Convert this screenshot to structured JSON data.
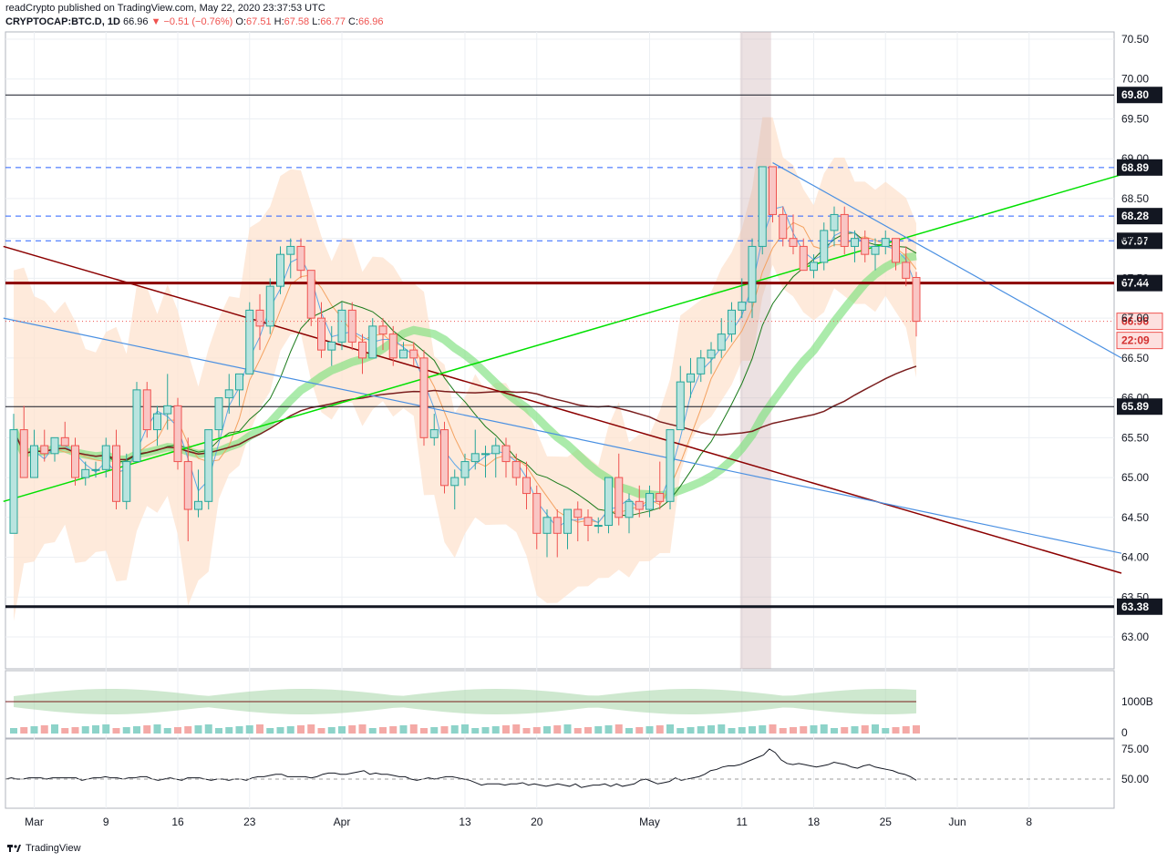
{
  "header": {
    "publisher": "readCrypto published on TradingView.com, May 22, 2020 23:37:53 UTC",
    "symbol": "CRYPTOCAP:BTC.D, 1D",
    "last": "66.96",
    "change": "▼ −0.51 (−0.76%)",
    "o_label": "O:",
    "o": "67.51",
    "h_label": "H:",
    "h": "67.58",
    "l_label": "L:",
    "l": "66.77",
    "c_label": "C:",
    "c": "66.96"
  },
  "footer": {
    "brand": "TradingView"
  },
  "colors": {
    "up": "#26a69a",
    "down": "#ef5350",
    "grid": "#eceff3",
    "dashed": "#2962ff",
    "darkred": "#8b0000",
    "green": "#00e000",
    "blue": "#4a90e2"
  },
  "chart_data": {
    "type": "line",
    "title": "",
    "ylim": [
      62.6,
      70.6
    ],
    "x_ticks": [
      {
        "day": 2,
        "label": "Mar"
      },
      {
        "day": 9,
        "label": "9"
      },
      {
        "day": 16,
        "label": "16"
      },
      {
        "day": 23,
        "label": "23"
      },
      {
        "day": 32,
        "label": "Apr"
      },
      {
        "day": 44,
        "label": "13"
      },
      {
        "day": 51,
        "label": "20"
      },
      {
        "day": 62,
        "label": "May"
      },
      {
        "day": 71,
        "label": "11"
      },
      {
        "day": 78,
        "label": "18"
      },
      {
        "day": 85,
        "label": "25"
      },
      {
        "day": 92,
        "label": "Jun"
      },
      {
        "day": 99,
        "label": "8"
      }
    ],
    "y_ticks": [
      "70.50",
      "70.00",
      "69.50",
      "69.00",
      "68.50",
      "68.00",
      "67.50",
      "67.00",
      "66.50",
      "66.00",
      "65.50",
      "65.00",
      "64.50",
      "64.00",
      "63.50",
      "63.00"
    ],
    "y_tick_values": [
      70.5,
      70.0,
      69.5,
      69.0,
      68.5,
      68.0,
      67.5,
      67.0,
      66.5,
      66.0,
      65.5,
      65.0,
      64.5,
      64.0,
      63.5,
      63.0
    ],
    "candles": [
      {
        "o": 64.3,
        "h": 65.8,
        "l": 64.3,
        "c": 65.6
      },
      {
        "o": 65.6,
        "h": 65.9,
        "l": 65.0,
        "c": 65.0
      },
      {
        "o": 65.0,
        "h": 65.6,
        "l": 65.0,
        "c": 65.4
      },
      {
        "o": 65.4,
        "h": 65.6,
        "l": 65.2,
        "c": 65.3
      },
      {
        "o": 65.3,
        "h": 65.5,
        "l": 65.2,
        "c": 65.5
      },
      {
        "o": 65.5,
        "h": 65.7,
        "l": 65.4,
        "c": 65.4
      },
      {
        "o": 65.4,
        "h": 65.5,
        "l": 64.9,
        "c": 65.0
      },
      {
        "o": 65.0,
        "h": 65.2,
        "l": 64.9,
        "c": 65.1
      },
      {
        "o": 65.1,
        "h": 65.2,
        "l": 65.0,
        "c": 65.1
      },
      {
        "o": 65.1,
        "h": 65.5,
        "l": 65.0,
        "c": 65.4
      },
      {
        "o": 65.4,
        "h": 65.6,
        "l": 64.6,
        "c": 64.7
      },
      {
        "o": 64.7,
        "h": 65.3,
        "l": 64.6,
        "c": 65.2
      },
      {
        "o": 65.2,
        "h": 66.2,
        "l": 65.2,
        "c": 66.1
      },
      {
        "o": 66.1,
        "h": 66.2,
        "l": 65.5,
        "c": 65.6
      },
      {
        "o": 65.6,
        "h": 65.9,
        "l": 65.4,
        "c": 65.8
      },
      {
        "o": 65.8,
        "h": 66.3,
        "l": 65.6,
        "c": 65.9
      },
      {
        "o": 65.9,
        "h": 66.0,
        "l": 65.1,
        "c": 65.2
      },
      {
        "o": 65.2,
        "h": 65.5,
        "l": 64.2,
        "c": 64.6
      },
      {
        "o": 64.6,
        "h": 65.1,
        "l": 64.5,
        "c": 64.7
      },
      {
        "o": 64.7,
        "h": 65.6,
        "l": 64.6,
        "c": 65.6
      },
      {
        "o": 65.6,
        "h": 66.0,
        "l": 65.5,
        "c": 66.0
      },
      {
        "o": 66.0,
        "h": 66.3,
        "l": 65.8,
        "c": 66.1
      },
      {
        "o": 66.1,
        "h": 66.3,
        "l": 65.9,
        "c": 66.3
      },
      {
        "o": 66.3,
        "h": 67.2,
        "l": 66.3,
        "c": 67.1
      },
      {
        "o": 67.1,
        "h": 67.3,
        "l": 66.6,
        "c": 66.9
      },
      {
        "o": 66.9,
        "h": 67.5,
        "l": 66.8,
        "c": 67.4
      },
      {
        "o": 67.4,
        "h": 67.9,
        "l": 67.3,
        "c": 67.8
      },
      {
        "o": 67.8,
        "h": 68.0,
        "l": 67.5,
        "c": 67.9
      },
      {
        "o": 67.9,
        "h": 68.0,
        "l": 67.5,
        "c": 67.6
      },
      {
        "o": 67.6,
        "h": 67.6,
        "l": 66.9,
        "c": 67.0
      },
      {
        "o": 67.0,
        "h": 67.2,
        "l": 66.5,
        "c": 66.6
      },
      {
        "o": 66.6,
        "h": 66.9,
        "l": 66.4,
        "c": 66.7
      },
      {
        "o": 66.7,
        "h": 67.2,
        "l": 66.6,
        "c": 67.1
      },
      {
        "o": 67.1,
        "h": 67.2,
        "l": 66.6,
        "c": 66.7
      },
      {
        "o": 66.7,
        "h": 66.8,
        "l": 66.3,
        "c": 66.5
      },
      {
        "o": 66.5,
        "h": 67.0,
        "l": 66.5,
        "c": 66.9
      },
      {
        "o": 66.9,
        "h": 67.0,
        "l": 66.6,
        "c": 66.8
      },
      {
        "o": 66.8,
        "h": 66.9,
        "l": 66.4,
        "c": 66.5
      },
      {
        "o": 66.5,
        "h": 66.7,
        "l": 66.5,
        "c": 66.6
      },
      {
        "o": 66.6,
        "h": 66.7,
        "l": 66.4,
        "c": 66.5
      },
      {
        "o": 66.5,
        "h": 66.6,
        "l": 65.4,
        "c": 65.5
      },
      {
        "o": 65.5,
        "h": 65.8,
        "l": 65.4,
        "c": 65.6
      },
      {
        "o": 65.6,
        "h": 65.7,
        "l": 64.8,
        "c": 64.9
      },
      {
        "o": 64.9,
        "h": 65.1,
        "l": 64.6,
        "c": 65.0
      },
      {
        "o": 65.0,
        "h": 65.3,
        "l": 64.9,
        "c": 65.2
      },
      {
        "o": 65.2,
        "h": 65.6,
        "l": 65.1,
        "c": 65.3
      },
      {
        "o": 65.3,
        "h": 65.4,
        "l": 65.0,
        "c": 65.3
      },
      {
        "o": 65.3,
        "h": 65.5,
        "l": 65.0,
        "c": 65.4
      },
      {
        "o": 65.4,
        "h": 65.5,
        "l": 65.0,
        "c": 65.2
      },
      {
        "o": 65.2,
        "h": 65.3,
        "l": 64.9,
        "c": 65.0
      },
      {
        "o": 65.0,
        "h": 65.2,
        "l": 64.6,
        "c": 64.8
      },
      {
        "o": 64.8,
        "h": 64.9,
        "l": 64.1,
        "c": 64.3
      },
      {
        "o": 64.3,
        "h": 64.6,
        "l": 64.0,
        "c": 64.5
      },
      {
        "o": 64.5,
        "h": 64.6,
        "l": 64.0,
        "c": 64.3
      },
      {
        "o": 64.3,
        "h": 64.6,
        "l": 64.1,
        "c": 64.6
      },
      {
        "o": 64.6,
        "h": 64.7,
        "l": 64.2,
        "c": 64.5
      },
      {
        "o": 64.5,
        "h": 64.6,
        "l": 64.2,
        "c": 64.4
      },
      {
        "o": 64.4,
        "h": 64.5,
        "l": 64.3,
        "c": 64.4
      },
      {
        "o": 64.4,
        "h": 65.0,
        "l": 64.3,
        "c": 65.0
      },
      {
        "o": 65.0,
        "h": 65.3,
        "l": 64.4,
        "c": 64.5
      },
      {
        "o": 64.5,
        "h": 64.8,
        "l": 64.3,
        "c": 64.7
      },
      {
        "o": 64.7,
        "h": 64.9,
        "l": 64.5,
        "c": 64.6
      },
      {
        "o": 64.6,
        "h": 64.9,
        "l": 64.5,
        "c": 64.8
      },
      {
        "o": 64.8,
        "h": 65.2,
        "l": 64.6,
        "c": 64.7
      },
      {
        "o": 64.7,
        "h": 65.6,
        "l": 64.6,
        "c": 65.6
      },
      {
        "o": 65.6,
        "h": 66.4,
        "l": 65.6,
        "c": 66.2
      },
      {
        "o": 66.2,
        "h": 66.5,
        "l": 66.0,
        "c": 66.3
      },
      {
        "o": 66.3,
        "h": 66.6,
        "l": 66.2,
        "c": 66.5
      },
      {
        "o": 66.5,
        "h": 66.7,
        "l": 66.3,
        "c": 66.6
      },
      {
        "o": 66.6,
        "h": 67.0,
        "l": 66.5,
        "c": 66.8
      },
      {
        "o": 66.8,
        "h": 67.2,
        "l": 66.7,
        "c": 67.1
      },
      {
        "o": 67.1,
        "h": 67.5,
        "l": 67.0,
        "c": 67.2
      },
      {
        "o": 67.2,
        "h": 68.0,
        "l": 67.0,
        "c": 67.9
      },
      {
        "o": 67.9,
        "h": 68.9,
        "l": 67.8,
        "c": 68.9
      },
      {
        "o": 68.9,
        "h": 68.9,
        "l": 68.2,
        "c": 68.3
      },
      {
        "o": 68.3,
        "h": 68.4,
        "l": 67.9,
        "c": 68.0
      },
      {
        "o": 68.0,
        "h": 68.3,
        "l": 67.8,
        "c": 67.9
      },
      {
        "o": 67.9,
        "h": 68.0,
        "l": 67.6,
        "c": 67.6
      },
      {
        "o": 67.6,
        "h": 67.8,
        "l": 67.5,
        "c": 67.7
      },
      {
        "o": 67.7,
        "h": 68.2,
        "l": 67.6,
        "c": 68.1
      },
      {
        "o": 68.1,
        "h": 68.4,
        "l": 67.9,
        "c": 68.3
      },
      {
        "o": 68.3,
        "h": 68.4,
        "l": 67.8,
        "c": 67.9
      },
      {
        "o": 67.9,
        "h": 68.1,
        "l": 67.7,
        "c": 68.0
      },
      {
        "o": 68.0,
        "h": 68.1,
        "l": 67.7,
        "c": 67.8
      },
      {
        "o": 67.8,
        "h": 68.0,
        "l": 67.6,
        "c": 67.9
      },
      {
        "o": 67.9,
        "h": 68.1,
        "l": 67.8,
        "c": 68.0
      },
      {
        "o": 68.0,
        "h": 68.0,
        "l": 67.6,
        "c": 67.7
      },
      {
        "o": 67.7,
        "h": 67.9,
        "l": 67.4,
        "c": 67.5
      },
      {
        "o": 67.51,
        "h": 67.58,
        "l": 66.77,
        "c": 66.96
      }
    ],
    "levels": [
      {
        "value": 69.8,
        "label": "69.80",
        "style": "solid-black"
      },
      {
        "value": 68.89,
        "label": "68.89",
        "style": "dashed-blue"
      },
      {
        "value": 68.28,
        "label": "68.28",
        "style": "dashed-blue"
      },
      {
        "value": 67.97,
        "label": "67.97",
        "style": "dashed-blue"
      },
      {
        "value": 67.44,
        "label": "67.44",
        "style": "thick-darkred"
      },
      {
        "value": 65.89,
        "label": "65.89",
        "style": "solid-black"
      },
      {
        "value": 63.38,
        "label": "63.38",
        "style": "thick-black"
      }
    ],
    "last_price_label": "66.96",
    "countdown_label": "22:09",
    "volume_axis": [
      "1000B",
      "0"
    ],
    "rsi_axis": [
      "75.00",
      "50.00"
    ],
    "rsi_values": [
      50,
      51,
      50,
      50,
      51,
      51,
      51,
      50,
      51,
      51,
      51,
      51,
      51,
      49,
      50,
      51,
      51,
      52,
      51,
      51,
      50,
      51,
      51,
      52,
      52,
      50,
      49,
      50,
      51,
      50,
      49,
      51,
      51,
      51,
      50,
      49,
      50,
      50,
      49,
      50,
      50,
      49,
      51,
      52,
      52,
      53,
      54,
      54,
      52,
      52,
      52,
      52,
      51,
      52,
      54,
      55,
      55,
      54,
      54,
      55,
      56,
      57,
      54,
      55,
      54,
      54,
      53,
      52,
      52,
      50,
      49,
      50,
      51,
      50,
      51,
      52,
      52,
      51,
      50,
      49,
      47,
      45,
      46,
      46,
      46,
      45,
      46,
      46,
      47,
      45,
      46,
      45,
      44,
      45,
      46,
      45,
      44,
      46,
      43,
      44,
      45,
      45,
      46,
      44,
      46,
      44,
      45,
      46,
      49,
      50,
      48,
      46,
      47,
      48,
      51,
      49,
      50,
      51,
      52,
      54,
      57,
      58,
      60,
      61,
      61,
      62,
      64,
      66,
      68,
      70,
      75,
      72,
      66,
      63,
      62,
      63,
      62,
      61,
      60,
      61,
      62,
      64,
      63,
      62,
      60,
      59,
      61,
      62,
      60,
      59,
      58,
      57,
      55,
      54,
      52,
      49
    ]
  }
}
